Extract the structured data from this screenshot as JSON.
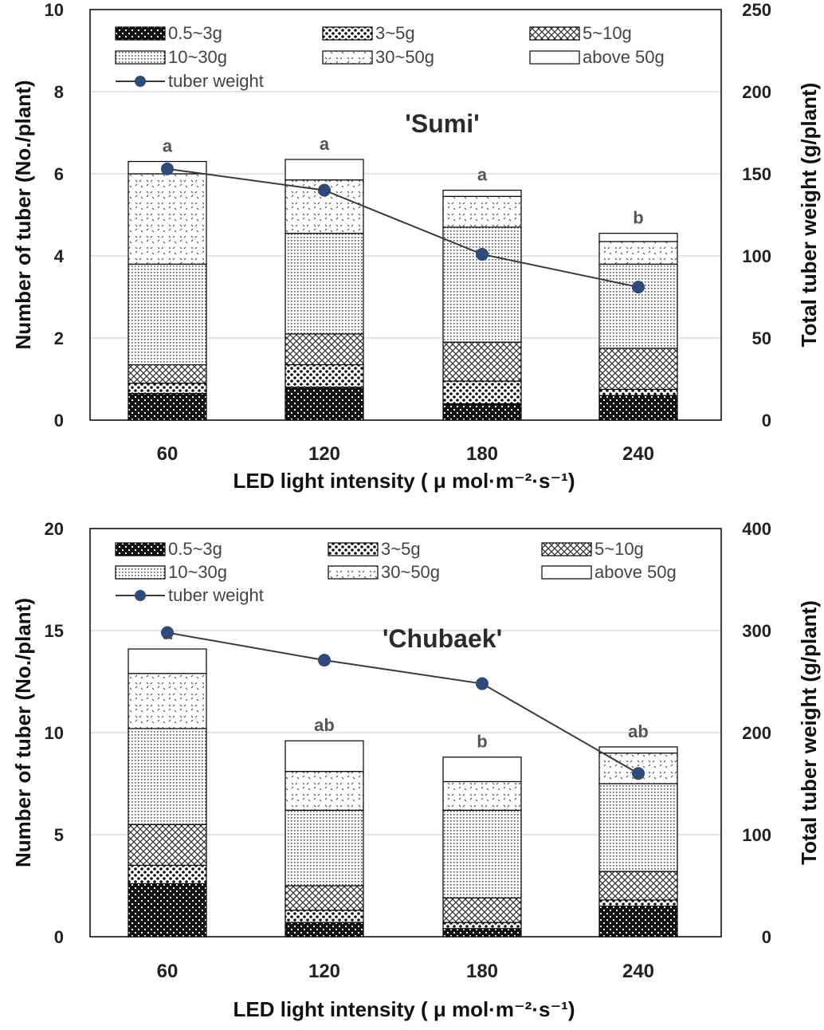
{
  "chart_data": [
    {
      "type": "bar",
      "stacked": true,
      "panel_title": "'Sumi'",
      "categories": [
        "60",
        "120",
        "180",
        "240"
      ],
      "xlabel": "LED light intensity ( μ mol·m-2·s-1)",
      "ylabel": "Number of tuber (No./plant)",
      "y2label": "Total tuber weight (g/plant)",
      "ylim": [
        0,
        10
      ],
      "yticks": [
        0,
        2,
        4,
        6,
        8,
        10
      ],
      "y2lim": [
        0,
        250
      ],
      "y2ticks": [
        0,
        50,
        100,
        150,
        200,
        250
      ],
      "series": [
        {
          "name": "0.5~3g",
          "values": [
            0.65,
            0.8,
            0.4,
            0.6
          ]
        },
        {
          "name": "3~5g",
          "values": [
            0.25,
            0.55,
            0.55,
            0.15
          ]
        },
        {
          "name": "5~10g",
          "values": [
            0.45,
            0.75,
            0.95,
            1.0
          ]
        },
        {
          "name": "10~30g",
          "values": [
            2.45,
            2.45,
            2.8,
            2.05
          ]
        },
        {
          "name": "30~50g",
          "values": [
            2.2,
            1.3,
            0.75,
            0.55
          ]
        },
        {
          "name": "above 50g",
          "values": [
            0.3,
            0.5,
            0.15,
            0.2
          ]
        }
      ],
      "line_series": {
        "name": "tuber weight",
        "axis": "secondary",
        "values": [
          153,
          140,
          101,
          81
        ]
      },
      "significance": [
        "a",
        "a",
        "a",
        "b"
      ]
    },
    {
      "type": "bar",
      "stacked": true,
      "panel_title": "'Chubaek'",
      "categories": [
        "60",
        "120",
        "180",
        "240"
      ],
      "xlabel": "LED light intensity ( μ mol·m-2·s-1)",
      "ylabel": "Number of tuber (No./plant)",
      "y2label": "Total tuber weight (g/plant)",
      "ylim": [
        0,
        20
      ],
      "yticks": [
        0,
        5,
        10,
        15,
        20
      ],
      "y2lim": [
        0,
        400
      ],
      "y2ticks": [
        0,
        100,
        200,
        300,
        400
      ],
      "series": [
        {
          "name": "0.5~3g",
          "values": [
            2.6,
            0.7,
            0.4,
            1.5
          ]
        },
        {
          "name": "3~5g",
          "values": [
            0.9,
            0.6,
            0.3,
            0.3
          ]
        },
        {
          "name": "5~10g",
          "values": [
            2.0,
            1.2,
            1.2,
            1.4
          ]
        },
        {
          "name": "10~30g",
          "values": [
            4.7,
            3.7,
            4.3,
            4.3
          ]
        },
        {
          "name": "30~50g",
          "values": [
            2.7,
            1.9,
            1.4,
            1.5
          ]
        },
        {
          "name": "above 50g",
          "values": [
            1.2,
            1.5,
            1.2,
            0.3
          ]
        }
      ],
      "line_series": {
        "name": "tuber weight",
        "axis": "secondary",
        "values": [
          298,
          271,
          248,
          160
        ]
      },
      "significance": [
        "a",
        "ab",
        "b",
        "ab"
      ]
    }
  ]
}
